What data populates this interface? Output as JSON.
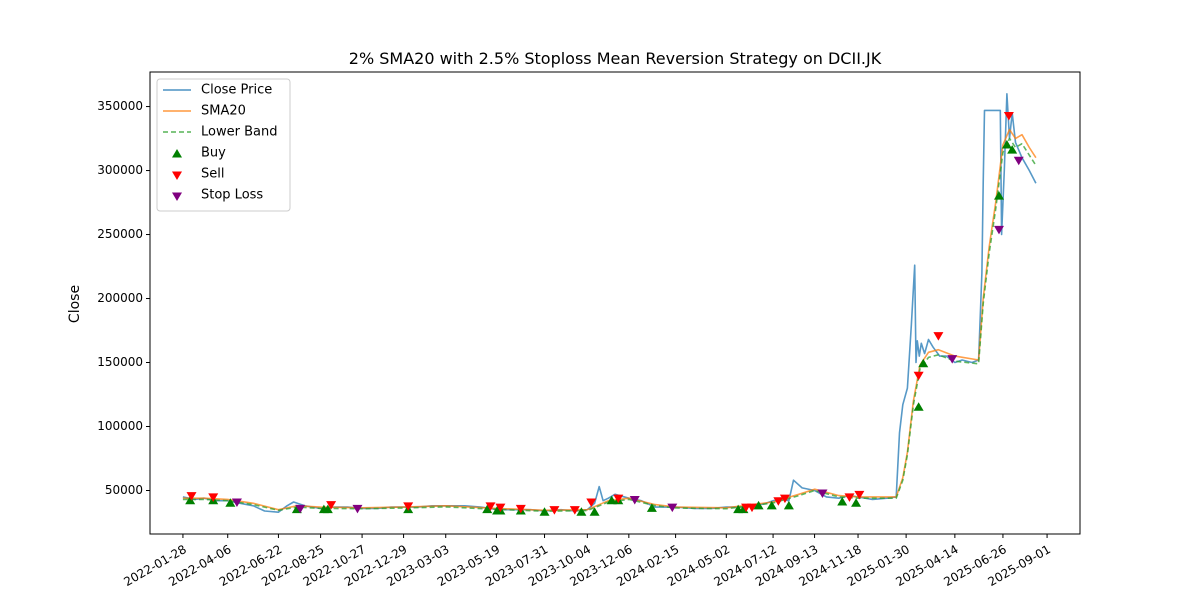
{
  "chart_data": {
    "type": "line",
    "title": "2% SMA20 with 2.5% Stoploss Mean Reversion Strategy on DCII.JK",
    "xlabel": "",
    "ylabel": "Close",
    "x_range": [
      "2021-12-09",
      "2025-10-21"
    ],
    "ylim": [
      16000,
      377000
    ],
    "x_ticks": [
      "2022-01-28",
      "2022-04-06",
      "2022-06-22",
      "2022-08-25",
      "2022-10-27",
      "2022-12-29",
      "2023-03-03",
      "2023-05-19",
      "2023-07-31",
      "2023-10-04",
      "2023-12-06",
      "2024-02-15",
      "2024-05-02",
      "2024-07-12",
      "2024-09-13",
      "2024-11-18",
      "2025-01-30",
      "2025-04-14",
      "2025-06-26",
      "2025-09-01"
    ],
    "y_ticks": [
      50000,
      100000,
      150000,
      200000,
      250000,
      300000,
      350000
    ],
    "y_tick_labels": [
      "50000",
      "100000",
      "150000",
      "200000",
      "250000",
      "300000",
      "350000"
    ],
    "grid": false,
    "legend_position": "top-left",
    "series": [
      {
        "name": "Close Price",
        "style": "solid",
        "color": "#1f77b4",
        "points": [
          [
            "2022-01-28",
            45000
          ],
          [
            "2022-02-15",
            43000
          ],
          [
            "2022-03-01",
            44000
          ],
          [
            "2022-03-20",
            42000
          ],
          [
            "2022-04-06",
            42000
          ],
          [
            "2022-04-25",
            40000
          ],
          [
            "2022-05-15",
            38000
          ],
          [
            "2022-06-01",
            34000
          ],
          [
            "2022-06-22",
            33000
          ],
          [
            "2022-07-05",
            38000
          ],
          [
            "2022-07-15",
            41000
          ],
          [
            "2022-08-01",
            38000
          ],
          [
            "2022-08-25",
            36000
          ],
          [
            "2022-09-15",
            37000
          ],
          [
            "2022-10-05",
            37000
          ],
          [
            "2022-10-27",
            36000
          ],
          [
            "2022-11-20",
            36000
          ],
          [
            "2022-12-10",
            37000
          ],
          [
            "2022-12-29",
            37000
          ],
          [
            "2023-01-20",
            37000
          ],
          [
            "2023-02-10",
            38000
          ],
          [
            "2023-03-03",
            38000
          ],
          [
            "2023-04-01",
            38000
          ],
          [
            "2023-04-25",
            37000
          ],
          [
            "2023-05-10",
            36000
          ],
          [
            "2023-05-19",
            35000
          ],
          [
            "2023-06-15",
            35000
          ],
          [
            "2023-07-10",
            35000
          ],
          [
            "2023-07-31",
            34000
          ],
          [
            "2023-08-25",
            35000
          ],
          [
            "2023-09-15",
            34000
          ],
          [
            "2023-10-04",
            35000
          ],
          [
            "2023-10-15",
            40000
          ],
          [
            "2023-10-22",
            53000
          ],
          [
            "2023-10-28",
            42000
          ],
          [
            "2023-11-05",
            44000
          ],
          [
            "2023-11-15",
            47000
          ],
          [
            "2023-12-06",
            44000
          ],
          [
            "2023-12-25",
            42000
          ],
          [
            "2024-01-15",
            37000
          ],
          [
            "2024-02-15",
            37000
          ],
          [
            "2024-03-15",
            36000
          ],
          [
            "2024-04-10",
            36000
          ],
          [
            "2024-05-02",
            37000
          ],
          [
            "2024-05-25",
            37000
          ],
          [
            "2024-06-15",
            38000
          ],
          [
            "2024-07-01",
            40000
          ],
          [
            "2024-07-12",
            42000
          ],
          [
            "2024-07-25",
            43000
          ],
          [
            "2024-08-05",
            42000
          ],
          [
            "2024-08-12",
            58000
          ],
          [
            "2024-08-25",
            52000
          ],
          [
            "2024-09-13",
            50000
          ],
          [
            "2024-10-01",
            45000
          ],
          [
            "2024-10-20",
            44000
          ],
          [
            "2024-11-05",
            46000
          ],
          [
            "2024-11-18",
            45000
          ],
          [
            "2024-12-10",
            43000
          ],
          [
            "2025-01-01",
            44000
          ],
          [
            "2025-01-15",
            45000
          ],
          [
            "2025-01-20",
            95000
          ],
          [
            "2025-01-25",
            117000
          ],
          [
            "2025-02-01",
            130000
          ],
          [
            "2025-02-07",
            180000
          ],
          [
            "2025-02-12",
            226000
          ],
          [
            "2025-02-14",
            150000
          ],
          [
            "2025-02-16",
            167000
          ],
          [
            "2025-02-19",
            155000
          ],
          [
            "2025-02-22",
            165000
          ],
          [
            "2025-02-27",
            157000
          ],
          [
            "2025-03-05",
            168000
          ],
          [
            "2025-03-12",
            162000
          ],
          [
            "2025-03-22",
            155000
          ],
          [
            "2025-04-01",
            155000
          ],
          [
            "2025-04-14",
            150000
          ],
          [
            "2025-04-25",
            152000
          ],
          [
            "2025-05-10",
            150000
          ],
          [
            "2025-05-20",
            152000
          ],
          [
            "2025-05-25",
            220000
          ],
          [
            "2025-05-27",
            290000
          ],
          [
            "2025-05-29",
            347000
          ],
          [
            "2025-06-05",
            347000
          ],
          [
            "2025-06-15",
            347000
          ],
          [
            "2025-06-22",
            347000
          ],
          [
            "2025-06-24",
            250000
          ],
          [
            "2025-06-28",
            300000
          ],
          [
            "2025-07-02",
            360000
          ],
          [
            "2025-07-06",
            325000
          ],
          [
            "2025-07-10",
            345000
          ],
          [
            "2025-07-15",
            322000
          ],
          [
            "2025-07-25",
            310000
          ],
          [
            "2025-08-05",
            300000
          ],
          [
            "2025-08-15",
            290000
          ]
        ]
      },
      {
        "name": "SMA20",
        "style": "solid",
        "color": "#ff7f0e",
        "points": [
          [
            "2022-01-28",
            44000
          ],
          [
            "2022-03-01",
            44000
          ],
          [
            "2022-04-06",
            43000
          ],
          [
            "2022-05-15",
            40000
          ],
          [
            "2022-06-22",
            35000
          ],
          [
            "2022-07-20",
            38000
          ],
          [
            "2022-08-25",
            37000
          ],
          [
            "2022-10-27",
            36500
          ],
          [
            "2022-12-29",
            37000
          ],
          [
            "2023-03-03",
            38000
          ],
          [
            "2023-05-19",
            36000
          ],
          [
            "2023-07-31",
            34500
          ],
          [
            "2023-10-04",
            35000
          ],
          [
            "2023-11-05",
            42000
          ],
          [
            "2023-12-06",
            44000
          ],
          [
            "2024-01-15",
            39000
          ],
          [
            "2024-02-15",
            37000
          ],
          [
            "2024-05-02",
            36500
          ],
          [
            "2024-07-12",
            41000
          ],
          [
            "2024-08-20",
            47000
          ],
          [
            "2024-09-13",
            51000
          ],
          [
            "2024-10-20",
            46000
          ],
          [
            "2024-11-18",
            45000
          ],
          [
            "2025-01-15",
            45000
          ],
          [
            "2025-01-25",
            60000
          ],
          [
            "2025-02-01",
            80000
          ],
          [
            "2025-02-10",
            120000
          ],
          [
            "2025-02-20",
            148000
          ],
          [
            "2025-03-05",
            158000
          ],
          [
            "2025-03-20",
            160000
          ],
          [
            "2025-04-14",
            155000
          ],
          [
            "2025-05-20",
            152000
          ],
          [
            "2025-05-27",
            200000
          ],
          [
            "2025-06-05",
            240000
          ],
          [
            "2025-06-15",
            275000
          ],
          [
            "2025-06-26",
            320000
          ],
          [
            "2025-07-06",
            332000
          ],
          [
            "2025-07-15",
            325000
          ],
          [
            "2025-07-25",
            328000
          ],
          [
            "2025-08-05",
            318000
          ],
          [
            "2025-08-15",
            310000
          ]
        ]
      },
      {
        "name": "Lower Band",
        "style": "dashed",
        "color": "#2ca02c",
        "points": [
          [
            "2022-01-28",
            43000
          ],
          [
            "2022-03-01",
            43000
          ],
          [
            "2022-04-06",
            42000
          ],
          [
            "2022-05-15",
            39000
          ],
          [
            "2022-06-22",
            34500
          ],
          [
            "2022-07-20",
            37000
          ],
          [
            "2022-08-25",
            36000
          ],
          [
            "2022-10-27",
            35800
          ],
          [
            "2022-12-29",
            36300
          ],
          [
            "2023-03-03",
            37200
          ],
          [
            "2023-05-19",
            35300
          ],
          [
            "2023-07-31",
            33800
          ],
          [
            "2023-10-04",
            34300
          ],
          [
            "2023-11-05",
            41000
          ],
          [
            "2023-12-06",
            43000
          ],
          [
            "2024-01-15",
            38200
          ],
          [
            "2024-02-15",
            36300
          ],
          [
            "2024-05-02",
            35800
          ],
          [
            "2024-07-12",
            40200
          ],
          [
            "2024-08-20",
            46000
          ],
          [
            "2024-09-13",
            50000
          ],
          [
            "2024-10-20",
            45000
          ],
          [
            "2024-11-18",
            44000
          ],
          [
            "2025-01-15",
            44000
          ],
          [
            "2025-01-25",
            58000
          ],
          [
            "2025-02-01",
            78000
          ],
          [
            "2025-02-10",
            117000
          ],
          [
            "2025-02-20",
            145000
          ],
          [
            "2025-03-05",
            154000
          ],
          [
            "2025-03-20",
            156000
          ],
          [
            "2025-04-14",
            151000
          ],
          [
            "2025-05-20",
            149000
          ],
          [
            "2025-05-27",
            196000
          ],
          [
            "2025-06-05",
            235000
          ],
          [
            "2025-06-15",
            270000
          ],
          [
            "2025-06-26",
            314000
          ],
          [
            "2025-07-06",
            325000
          ],
          [
            "2025-07-15",
            318000
          ],
          [
            "2025-07-25",
            321000
          ],
          [
            "2025-08-05",
            312000
          ],
          [
            "2025-08-15",
            304000
          ]
        ]
      }
    ],
    "markers": [
      {
        "name": "Buy",
        "shape": "triangle-up",
        "color": "#008000",
        "points": [
          [
            "2022-02-08",
            42000
          ],
          [
            "2022-03-15",
            42000
          ],
          [
            "2022-04-10",
            40000
          ],
          [
            "2022-07-20",
            35000
          ],
          [
            "2022-08-30",
            35000
          ],
          [
            "2022-09-05",
            35000
          ],
          [
            "2023-01-05",
            35000
          ],
          [
            "2023-05-05",
            35000
          ],
          [
            "2023-05-20",
            34000
          ],
          [
            "2023-05-25",
            34000
          ],
          [
            "2023-06-25",
            34000
          ],
          [
            "2023-07-31",
            33000
          ],
          [
            "2023-09-25",
            33000
          ],
          [
            "2023-10-15",
            33000
          ],
          [
            "2023-11-10",
            42000
          ],
          [
            "2023-11-20",
            42000
          ],
          [
            "2024-01-10",
            36000
          ],
          [
            "2024-05-20",
            35000
          ],
          [
            "2024-05-28",
            35000
          ],
          [
            "2024-06-20",
            38000
          ],
          [
            "2024-07-10",
            38000
          ],
          [
            "2024-08-05",
            38000
          ],
          [
            "2024-10-25",
            41000
          ],
          [
            "2024-11-15",
            40000
          ],
          [
            "2025-02-18",
            115000
          ],
          [
            "2025-02-25",
            149000
          ],
          [
            "2025-06-20",
            280000
          ],
          [
            "2025-07-02",
            320000
          ],
          [
            "2025-07-10",
            316000
          ]
        ]
      },
      {
        "name": "Sell",
        "shape": "triangle-down",
        "color": "#ff0000",
        "points": [
          [
            "2022-02-10",
            46000
          ],
          [
            "2022-03-15",
            45000
          ],
          [
            "2022-09-10",
            39000
          ],
          [
            "2023-01-05",
            38000
          ],
          [
            "2023-05-10",
            38000
          ],
          [
            "2023-05-25",
            37000
          ],
          [
            "2023-06-25",
            36000
          ],
          [
            "2023-08-15",
            35000
          ],
          [
            "2023-09-15",
            35000
          ],
          [
            "2023-10-10",
            41000
          ],
          [
            "2023-11-20",
            44000
          ],
          [
            "2024-06-01",
            37000
          ],
          [
            "2024-06-10",
            37000
          ],
          [
            "2024-07-20",
            42000
          ],
          [
            "2024-07-30",
            44000
          ],
          [
            "2024-11-05",
            45000
          ],
          [
            "2024-11-20",
            47000
          ],
          [
            "2025-02-18",
            140000
          ],
          [
            "2025-03-20",
            171000
          ],
          [
            "2025-07-05",
            343000
          ]
        ]
      },
      {
        "name": "Stop Loss",
        "shape": "triangle-down",
        "color": "#800080",
        "points": [
          [
            "2022-04-20",
            41000
          ],
          [
            "2022-07-25",
            36000
          ],
          [
            "2022-10-20",
            36000
          ],
          [
            "2023-12-15",
            43000
          ],
          [
            "2024-02-10",
            37000
          ],
          [
            "2024-09-25",
            48000
          ],
          [
            "2025-04-10",
            153000
          ],
          [
            "2025-06-20",
            254000
          ],
          [
            "2025-07-20",
            308000
          ]
        ]
      }
    ]
  }
}
